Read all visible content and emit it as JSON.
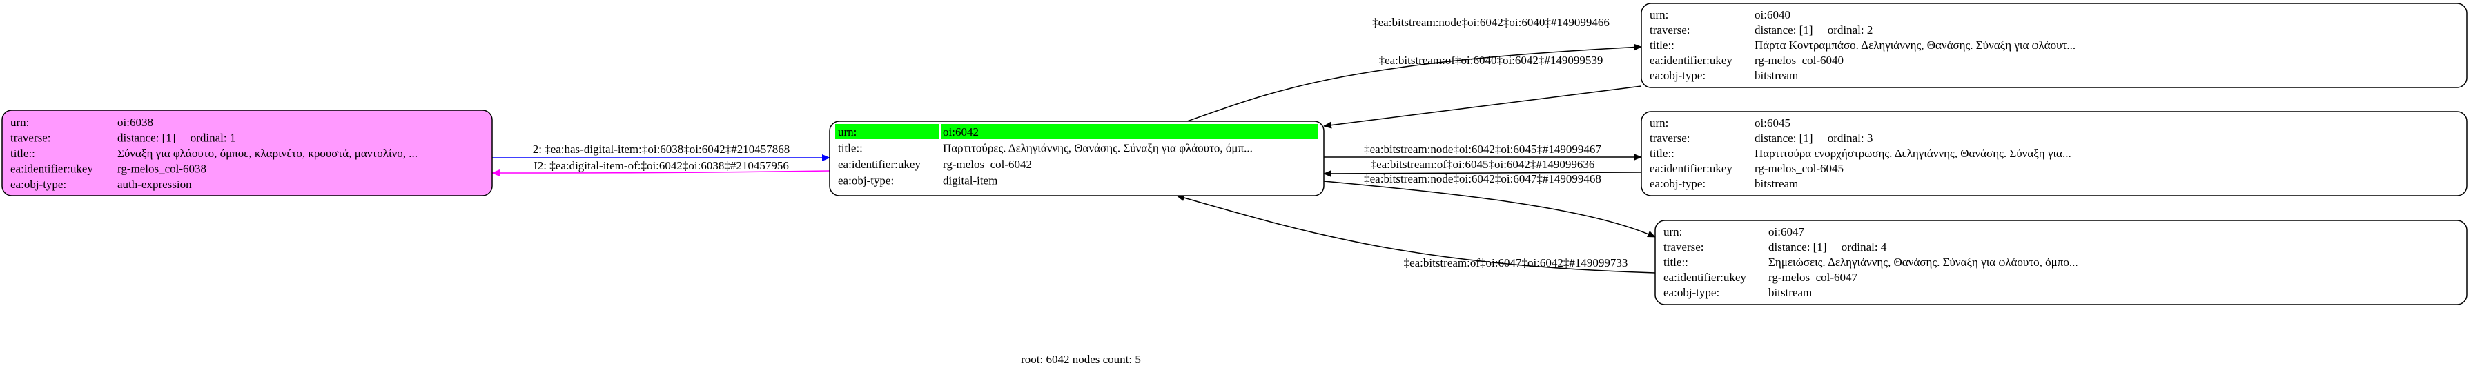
{
  "nodes": {
    "n6038": {
      "fill": "#ff99ff",
      "highlight": null,
      "rows": [
        [
          "urn:",
          "oi:6038"
        ],
        [
          "traverse:",
          "distance: [1]     ordinal: 1"
        ],
        [
          "title::",
          "Σύναξη για φλάουτο, όμποε, κλαρινέτο, κρουστά, μαντολίνο, ..."
        ],
        [
          "ea:identifier:ukey",
          "rg-melos_col-6038"
        ],
        [
          "ea:obj-type:",
          "auth-expression"
        ]
      ]
    },
    "n6042": {
      "fill": "#ffffff",
      "highlight": "#00ff00",
      "rows": [
        [
          "urn:",
          "oi:6042"
        ],
        [
          "title::",
          "Παρτιτούρες. Δεληγιάννης, Θανάσης. Σύναξη για φλάουτο, όμπ..."
        ],
        [
          "ea:identifier:ukey",
          "rg-melos_col-6042"
        ],
        [
          "ea:obj-type:",
          "digital-item"
        ]
      ]
    },
    "n6040": {
      "fill": "#ffffff",
      "highlight": null,
      "rows": [
        [
          "urn:",
          "oi:6040"
        ],
        [
          "traverse:",
          "distance: [1]     ordinal: 2"
        ],
        [
          "title::",
          "Πάρτα Κοντραμπάσο. Δεληγιάννης, Θανάσης. Σύναξη για φλάουτ..."
        ],
        [
          "ea:identifier:ukey",
          "rg-melos_col-6040"
        ],
        [
          "ea:obj-type:",
          "bitstream"
        ]
      ]
    },
    "n6045": {
      "fill": "#ffffff",
      "highlight": null,
      "rows": [
        [
          "urn:",
          "oi:6045"
        ],
        [
          "traverse:",
          "distance: [1]     ordinal: 3"
        ],
        [
          "title::",
          "Παρτιτούρα ενορχήστρωσης. Δεληγιάννης, Θανάσης. Σύναξη για..."
        ],
        [
          "ea:identifier:ukey",
          "rg-melos_col-6045"
        ],
        [
          "ea:obj-type:",
          "bitstream"
        ]
      ]
    },
    "n6047": {
      "fill": "#ffffff",
      "highlight": null,
      "rows": [
        [
          "urn:",
          "oi:6047"
        ],
        [
          "traverse:",
          "distance: [1]     ordinal: 4"
        ],
        [
          "title::",
          "Σημειώσεις. Δεληγιάννης, Θανάσης. Σύναξη για φλάουτο, όμπο..."
        ],
        [
          "ea:identifier:ukey",
          "rg-melos_col-6047"
        ],
        [
          "ea:obj-type:",
          "bitstream"
        ]
      ]
    }
  },
  "edges": [
    {
      "id": "e1",
      "from": "n6038",
      "to": "n6042",
      "color": "#0000ff",
      "label": "2: ‡ea:has-digital-item:‡oi:6038‡oi:6042‡#210457868"
    },
    {
      "id": "e2",
      "from": "n6042",
      "to": "n6038",
      "color": "#ff00ff",
      "label": "I2: ‡ea:digital-item-of:‡oi:6042‡oi:6038‡#210457956"
    },
    {
      "id": "e3",
      "from": "n6042",
      "to": "n6040",
      "color": "#000000",
      "label": "‡ea:bitstream:node‡oi:6042‡oi:6040‡#149099466"
    },
    {
      "id": "e4",
      "from": "n6040",
      "to": "n6042",
      "color": "#000000",
      "label": "‡ea:bitstream:of‡oi:6040‡oi:6042‡#149099539"
    },
    {
      "id": "e5",
      "from": "n6042",
      "to": "n6045",
      "color": "#000000",
      "label": "‡ea:bitstream:node‡oi:6042‡oi:6045‡#149099467"
    },
    {
      "id": "e6",
      "from": "n6045",
      "to": "n6042",
      "color": "#000000",
      "label": "‡ea:bitstream:of‡oi:6045‡oi:6042‡#149099636"
    },
    {
      "id": "e7",
      "from": "n6042",
      "to": "n6047",
      "color": "#000000",
      "label": "‡ea:bitstream:node‡oi:6042‡oi:6047‡#149099468"
    },
    {
      "id": "e8",
      "from": "n6047",
      "to": "n6042",
      "color": "#000000",
      "label": "‡ea:bitstream:of‡oi:6047‡oi:6042‡#149099733"
    }
  ],
  "footer": "root: 6042 nodes count: 5"
}
